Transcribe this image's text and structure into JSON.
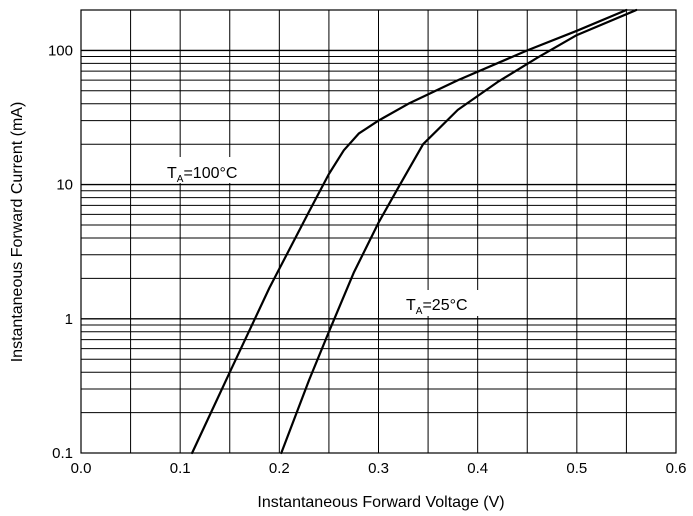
{
  "chart_data": {
    "type": "line",
    "title": "",
    "xlabel": "Instantaneous Forward Voltage (V)",
    "ylabel": "Instantaneous Forward Current (mA)",
    "x_scale": "linear",
    "y_scale": "log",
    "xlim": [
      0.0,
      0.6
    ],
    "ylim": [
      0.1,
      200
    ],
    "grid": true,
    "x_ticks": [
      "0.0",
      "0.1",
      "0.2",
      "0.3",
      "0.4",
      "0.5",
      "0.6"
    ],
    "y_ticks": [
      "0.1",
      "1",
      "10",
      "100"
    ],
    "series": [
      {
        "name": "TA=100°C",
        "x": [
          0.112,
          0.15,
          0.19,
          0.23,
          0.25,
          0.265,
          0.28,
          0.3,
          0.33,
          0.38,
          0.45,
          0.5,
          0.55
        ],
        "y": [
          0.1,
          0.4,
          1.7,
          6.3,
          12,
          18,
          24,
          30,
          40,
          60,
          100,
          140,
          200
        ]
      },
      {
        "name": "TA=25°C",
        "x": [
          0.202,
          0.23,
          0.25,
          0.275,
          0.3,
          0.32,
          0.345,
          0.38,
          0.42,
          0.46,
          0.5,
          0.56
        ],
        "y": [
          0.1,
          0.35,
          0.8,
          2.2,
          5.2,
          9.5,
          20,
          36,
          58,
          88,
          130,
          200
        ]
      }
    ],
    "annotations": [
      {
        "base": "T",
        "sub": "A",
        "rest": "=100°C"
      },
      {
        "base": "T",
        "sub": "A",
        "rest": "=25°C"
      }
    ]
  }
}
